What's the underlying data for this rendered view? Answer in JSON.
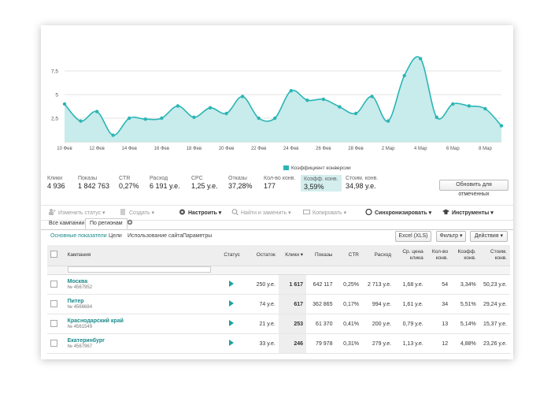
{
  "chart_data": {
    "type": "area",
    "x": [
      "10 Фев",
      "11 Фев",
      "12 Фев",
      "13 Фев",
      "14 Фев",
      "15 Фев",
      "16 Фев",
      "17 Фев",
      "18 Фев",
      "19 Фев",
      "20 Фев",
      "21 Фев",
      "22 Фев",
      "23 Фев",
      "24 Фев",
      "25 Фев",
      "26 Фев",
      "27 Фев",
      "28 Фев",
      "1 Мар",
      "2 Мар",
      "3 Мар",
      "4 Мар",
      "5 Мар",
      "6 Мар",
      "7 Мар",
      "8 Мар",
      "9 Мар"
    ],
    "tick_labels": [
      "10 Фев",
      "12 Фев",
      "14 Фев",
      "16 Фев",
      "18 Фев",
      "20 Фев",
      "22 Фев",
      "24 Фев",
      "26 Фев",
      "28 Фев",
      "2 Мар",
      "4 Мар",
      "6 Мар",
      "8 Мар"
    ],
    "series": [
      {
        "name": "Коэффициент конверсии",
        "values": [
          4.0,
          2.2,
          3.2,
          0.7,
          2.5,
          2.4,
          2.5,
          3.8,
          2.6,
          3.6,
          3.0,
          4.8,
          2.5,
          2.5,
          5.4,
          4.4,
          4.5,
          3.7,
          3.0,
          4.8,
          2.2,
          7.0,
          8.8,
          2.6,
          4.0,
          3.8,
          3.5,
          1.7
        ]
      }
    ],
    "yticks": [
      2.5,
      5,
      7.5
    ],
    "ylim": [
      0,
      10
    ],
    "grid": true,
    "legend": "bottom-center",
    "color": "#2bb5b5",
    "fill": "#c8ebeb"
  },
  "stats": [
    {
      "label": "Клики",
      "value": "4 936"
    },
    {
      "label": "Показы",
      "value": "1 842 763"
    },
    {
      "label": "CTR",
      "value": "0,27%"
    },
    {
      "label": "Расход",
      "value": "6 191 у.е."
    },
    {
      "label": "CPC",
      "value": "1,25 у.е."
    },
    {
      "label": "Отказы",
      "value": "37,28%"
    },
    {
      "label": "Кол-во конв.",
      "value": "177"
    },
    {
      "label": "Коэфф. конв.",
      "value": "3,59%"
    },
    {
      "label": "Стоим. конв.",
      "value": "34,98 у.е."
    }
  ],
  "update_button": "Обновить для отмеченных",
  "toolbar": {
    "change_status": "Изменить статус",
    "create": "Создать",
    "configure": "Настроить",
    "find_replace": "Найти и заменить",
    "copy": "Копировать",
    "sync": "Синхронизировать",
    "tools": "Инструменты"
  },
  "tabs": {
    "all_campaigns": "Все кампании",
    "by_regions": "По регионам"
  },
  "sublinks": {
    "main": "Основные показатели",
    "goals": "Цели",
    "site_usage": "Использование сайта",
    "params": "Параметры"
  },
  "actions": {
    "excel": "Excel (XLS)",
    "filter": "Фильтр",
    "actions": "Действия"
  },
  "table": {
    "headers": {
      "campaign": "Кампания",
      "status": "Статус",
      "balance": "Остаток",
      "clicks": "Клики",
      "impressions": "Показы",
      "ctr": "CTR",
      "spend": "Расход",
      "avg_price_1": "Ср. цена",
      "avg_price_2": "клика",
      "conv_count_1": "Кол-во",
      "conv_count_2": "конв.",
      "conv_rate_1": "Коэфф.",
      "conv_rate_2": "конв.",
      "conv_cost_1": "Стоим.",
      "conv_cost_2": "конв."
    },
    "rows": [
      {
        "name": "Москва",
        "id": "№ 4567952",
        "balance": "250 у.е.",
        "clicks": "1 617",
        "impressions": "642 117",
        "ctr": "0,25%",
        "spend": "2 713 у.е.",
        "cpc": "1,68 у.е.",
        "conv": "54",
        "rate": "3,34%",
        "cost": "50,23 у.е."
      },
      {
        "name": "Питер",
        "id": "№ 4566684",
        "balance": "74 у.е.",
        "clicks": "617",
        "impressions": "362 865",
        "ctr": "0,17%",
        "spend": "994 у.е.",
        "cpc": "1,61 у.е.",
        "conv": "34",
        "rate": "5,51%",
        "cost": "29,24 у.е."
      },
      {
        "name": "Краснодарский край",
        "id": "№ 4561549",
        "balance": "21 у.е.",
        "clicks": "253",
        "impressions": "61 370",
        "ctr": "0,41%",
        "spend": "200 у.е.",
        "cpc": "0,79 у.е.",
        "conv": "13",
        "rate": "5,14%",
        "cost": "15,37 у.е."
      },
      {
        "name": "Екатеринбург",
        "id": "№ 4567967",
        "balance": "33 у.е.",
        "clicks": "246",
        "impressions": "79 978",
        "ctr": "0,31%",
        "spend": "279 у.е.",
        "cpc": "1,13 у.е.",
        "conv": "12",
        "rate": "4,88%",
        "cost": "23,26 у.е."
      }
    ]
  }
}
